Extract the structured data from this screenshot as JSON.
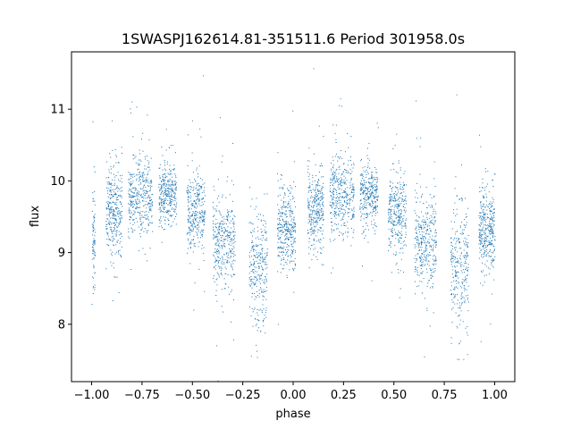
{
  "chart_data": {
    "type": "scatter",
    "title": "1SWASPJ162614.81-351511.6 Period 301958.0s",
    "xlabel": "phase",
    "ylabel": "flux",
    "xlim": [
      -1.1,
      1.1
    ],
    "ylim": [
      7.2,
      11.8
    ],
    "xticks": [
      -1.0,
      -0.75,
      -0.5,
      -0.25,
      0.0,
      0.25,
      0.5,
      0.75,
      1.0
    ],
    "xtick_labels": [
      "−1.00",
      "−0.75",
      "−0.50",
      "−0.25",
      "0.00",
      "0.25",
      "0.50",
      "0.75",
      "1.00"
    ],
    "yticks": [
      8,
      9,
      10,
      11
    ],
    "ytick_labels": [
      "8",
      "9",
      "10",
      "11"
    ],
    "grid": false,
    "point_color": "#1f77b4",
    "series": [
      {
        "clusters": [
          {
            "x": [
              -1.0,
              -0.985
            ],
            "y_center": 9.25,
            "y_spread": 0.35,
            "density": 0.25
          },
          {
            "x": [
              -0.93,
              -0.85
            ],
            "y_center": 9.6,
            "y_spread": 0.3,
            "density": 1.0
          },
          {
            "x": [
              -0.82,
              -0.7
            ],
            "y_center": 9.78,
            "y_spread": 0.28,
            "density": 1.2
          },
          {
            "x": [
              -0.67,
              -0.58
            ],
            "y_center": 9.82,
            "y_spread": 0.22,
            "density": 1.0
          },
          {
            "x": [
              -0.53,
              -0.44
            ],
            "y_center": 9.55,
            "y_spread": 0.28,
            "density": 1.0
          },
          {
            "x": [
              -0.4,
              -0.29
            ],
            "y_center": 9.15,
            "y_spread": 0.32,
            "density": 1.1
          },
          {
            "x": [
              -0.22,
              -0.13
            ],
            "y_center": 8.8,
            "y_spread": 0.4,
            "density": 0.9
          },
          {
            "x": [
              -0.08,
              0.01
            ],
            "y_center": 9.3,
            "y_spread": 0.3,
            "density": 1.1
          },
          {
            "x": [
              0.07,
              0.15
            ],
            "y_center": 9.6,
            "y_spread": 0.3,
            "density": 1.0
          },
          {
            "x": [
              0.18,
              0.3
            ],
            "y_center": 9.78,
            "y_spread": 0.28,
            "density": 1.2
          },
          {
            "x": [
              0.33,
              0.42
            ],
            "y_center": 9.82,
            "y_spread": 0.22,
            "density": 1.0
          },
          {
            "x": [
              0.47,
              0.56
            ],
            "y_center": 9.55,
            "y_spread": 0.28,
            "density": 1.0
          },
          {
            "x": [
              0.6,
              0.71
            ],
            "y_center": 9.15,
            "y_spread": 0.32,
            "density": 1.1
          },
          {
            "x": [
              0.78,
              0.87
            ],
            "y_center": 8.8,
            "y_spread": 0.4,
            "density": 0.9
          },
          {
            "x": [
              0.92,
              1.0
            ],
            "y_center": 9.35,
            "y_spread": 0.3,
            "density": 1.1
          }
        ]
      }
    ]
  }
}
